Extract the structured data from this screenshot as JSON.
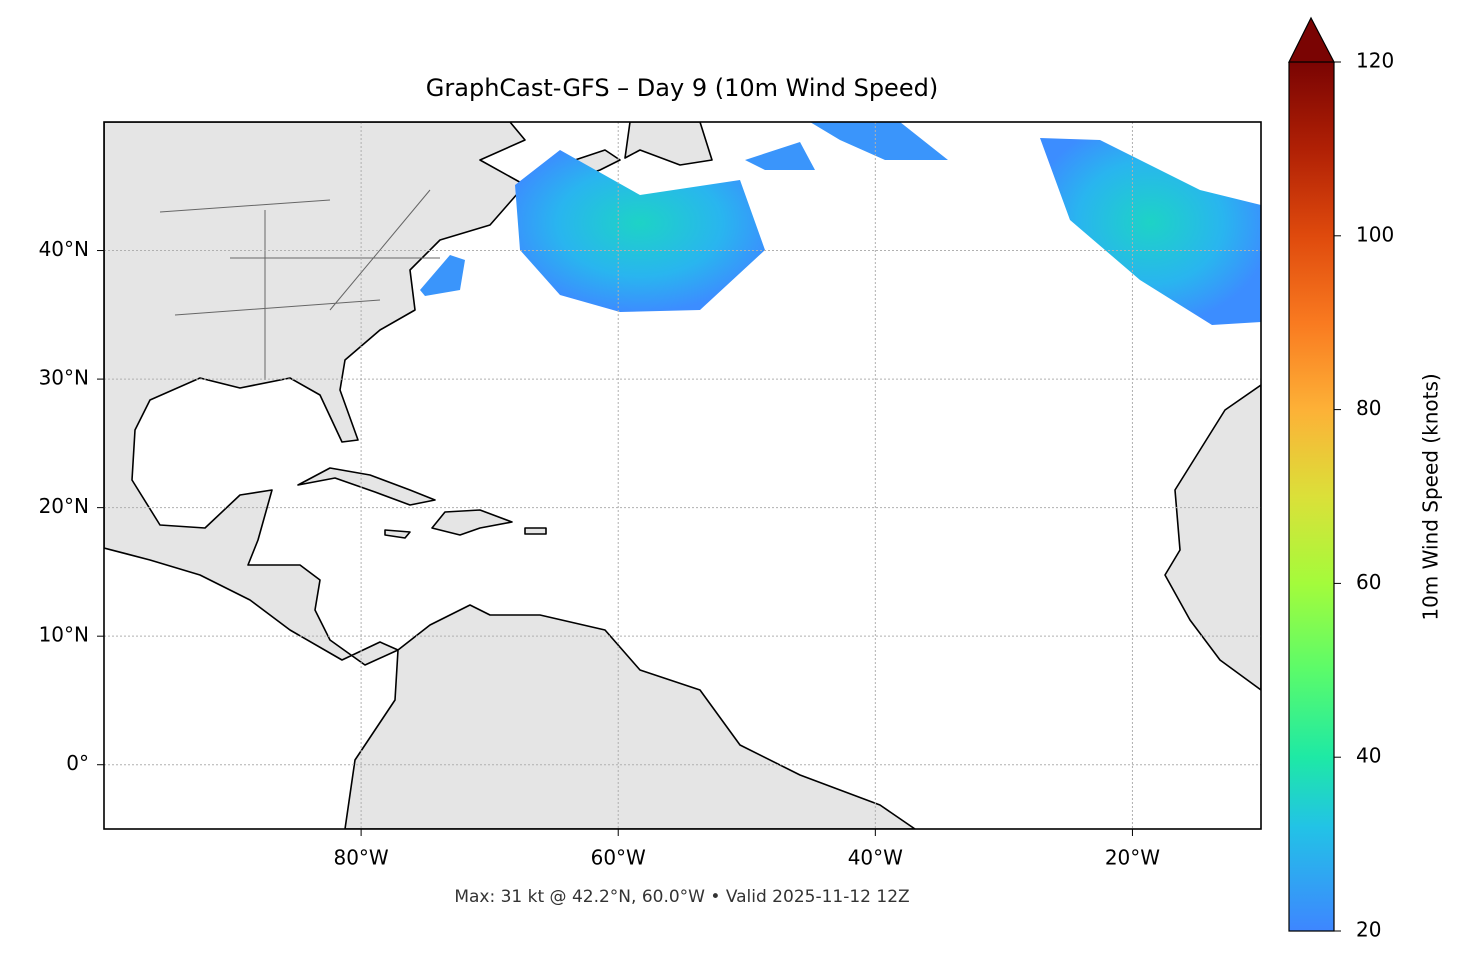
{
  "chart_data": {
    "type": "map",
    "title": "GraphCast-GFS – Day 9 (10m Wind Speed)",
    "footnote": "Max: 31 kt @ 42.2°N, 60.0°W • Valid 2025-11-12 12Z",
    "xlim": [
      -100,
      -10
    ],
    "xticks": [
      {
        "value": -80,
        "label": "80°W"
      },
      {
        "value": -60,
        "label": "60°W"
      },
      {
        "value": -40,
        "label": "40°W"
      },
      {
        "value": -20,
        "label": "20°W"
      }
    ],
    "ylim": [
      -5,
      50
    ],
    "yticks": [
      {
        "value": 0,
        "label": "0°"
      },
      {
        "value": 10,
        "label": "10°N"
      },
      {
        "value": 20,
        "label": "20°N"
      },
      {
        "value": 30,
        "label": "30°N"
      },
      {
        "value": 40,
        "label": "40°N"
      }
    ],
    "grid": true,
    "colorbar": {
      "label": "10m Wind Speed (knots)",
      "lim": [
        20,
        120
      ],
      "ticks": [
        20,
        40,
        60,
        80,
        100,
        120
      ],
      "extend": "max"
    }
  }
}
